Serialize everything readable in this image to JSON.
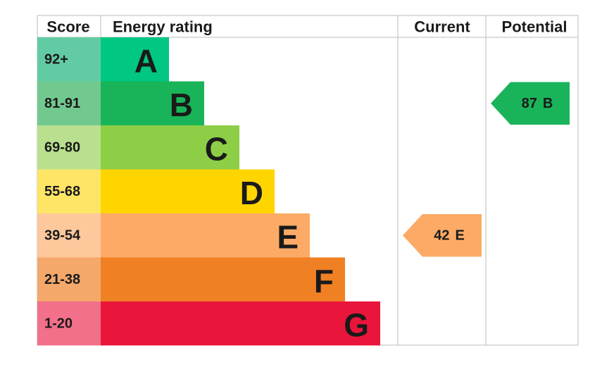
{
  "header": {
    "score": "Score",
    "rating": "Energy rating",
    "current": "Current",
    "potential": "Potential"
  },
  "bands": [
    {
      "score": "92+",
      "letter": "A",
      "color": "#00c781",
      "score_color": "#63cba3"
    },
    {
      "score": "81-91",
      "letter": "B",
      "color": "#19b459",
      "score_color": "#72c98f"
    },
    {
      "score": "69-80",
      "letter": "C",
      "color": "#8dce46",
      "score_color": "#b9e08e"
    },
    {
      "score": "55-68",
      "letter": "D",
      "color": "#ffd500",
      "score_color": "#ffe566"
    },
    {
      "score": "39-54",
      "letter": "E",
      "color": "#fcaa65",
      "score_color": "#fdc89c"
    },
    {
      "score": "21-38",
      "letter": "F",
      "color": "#ef8023",
      "score_color": "#f4a86a"
    },
    {
      "score": "1-20",
      "letter": "G",
      "color": "#e9153b",
      "score_color": "#f27089"
    }
  ],
  "current": {
    "value": 42,
    "letter": "E"
  },
  "potential": {
    "value": 87,
    "letter": "B"
  }
}
